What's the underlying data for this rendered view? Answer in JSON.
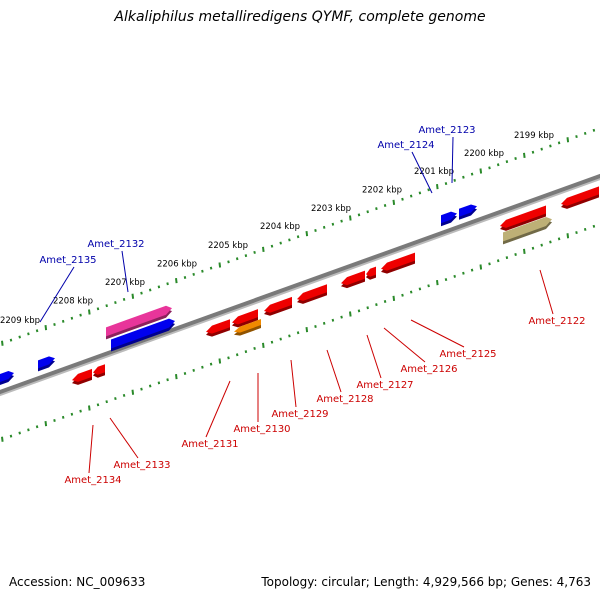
{
  "header": {
    "title": "Alkaliphilus metalliredigens QYMF, complete genome"
  },
  "footer": {
    "accession": "Accession: NC_009633",
    "summary": "Topology: circular; Length: 4,929,566 bp; Genes: 4,763"
  },
  "colors": {
    "backbone": "#7a7a7a",
    "tick": "#2a8a2a",
    "forward_gene": "#0000ee",
    "reverse_gene": "#ee0000",
    "forward_label": "#0000aa",
    "reverse_label": "#cc0000",
    "rna_pink": "#e8359a",
    "rna_orange": "#f08a00",
    "olive": "#bdb076"
  },
  "kbp_labels": [
    "2199 kbp",
    "2200 kbp",
    "2201 kbp",
    "2202 kbp",
    "2203 kbp",
    "2204 kbp",
    "2205 kbp",
    "2206 kbp",
    "2207 kbp",
    "2208 kbp",
    "2209 kbp"
  ],
  "forward_gene_labels": [
    "Amet_2123",
    "Amet_2124",
    "Amet_2132",
    "Amet_2135"
  ],
  "reverse_gene_labels": [
    "Amet_2122",
    "Amet_2125",
    "Amet_2126",
    "Amet_2127",
    "Amet_2128",
    "Amet_2129",
    "Amet_2130",
    "Amet_2131",
    "Amet_2133",
    "Amet_2134"
  ]
}
